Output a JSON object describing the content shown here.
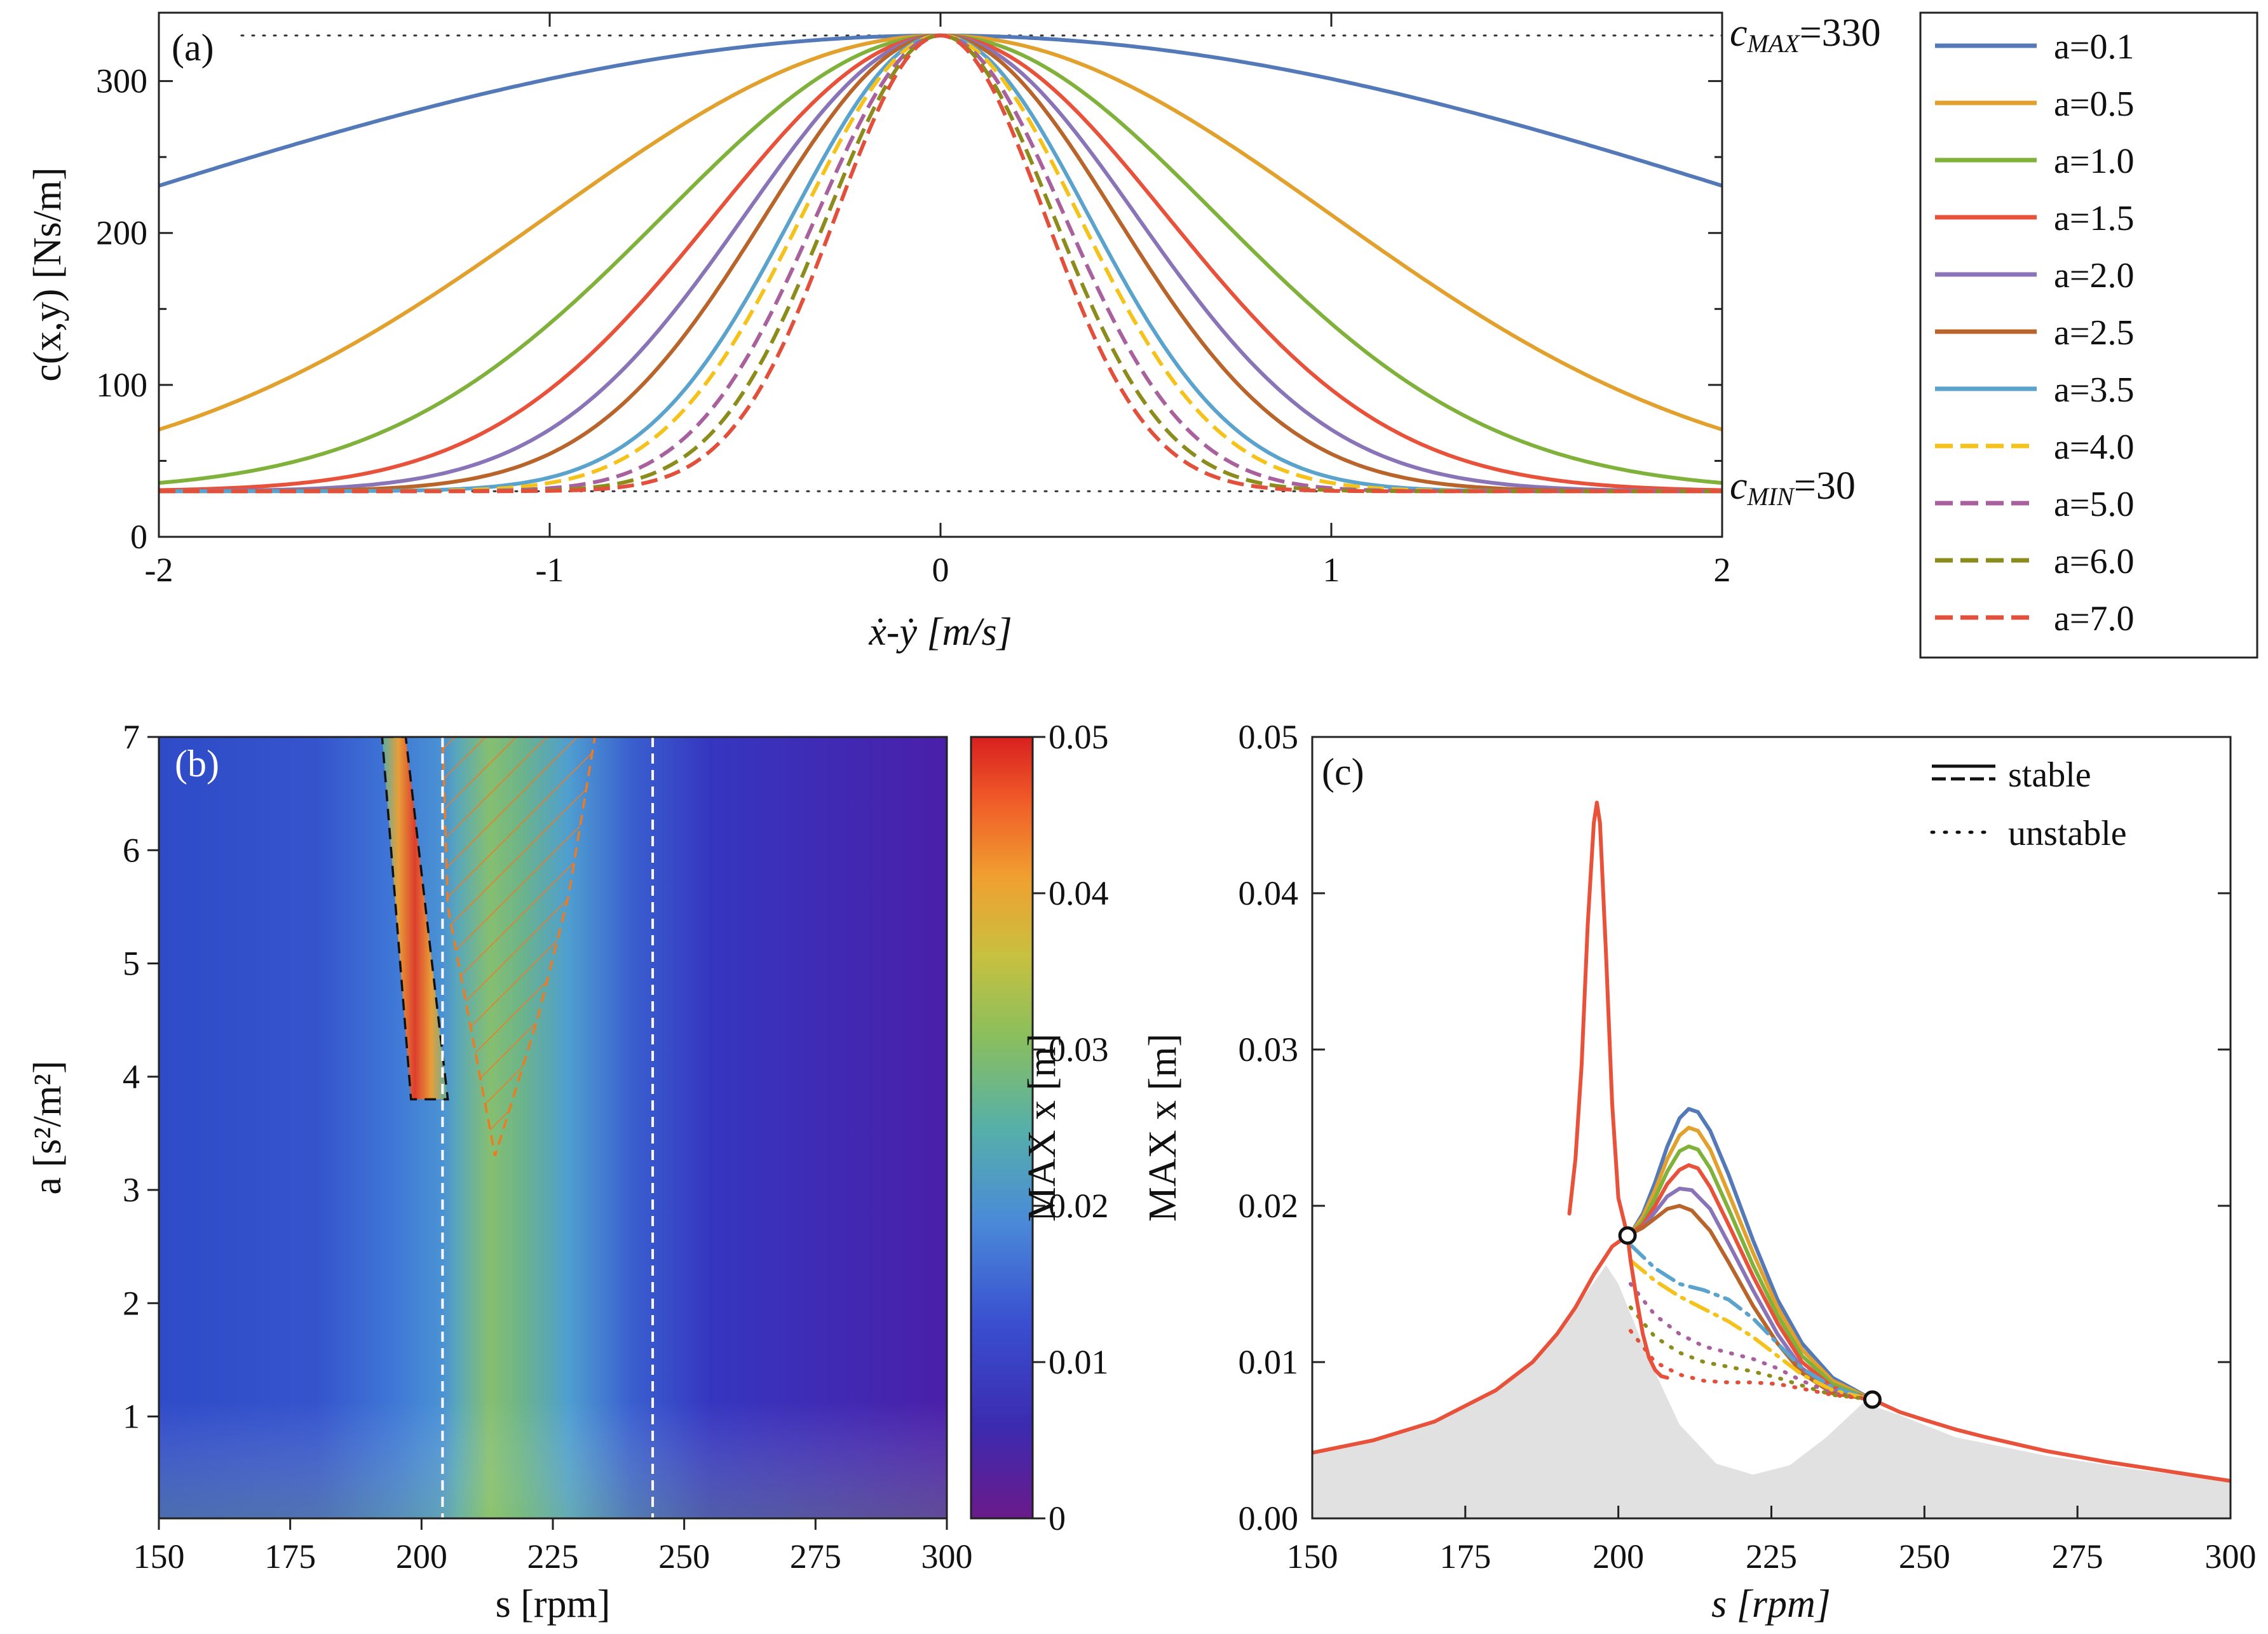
{
  "figure": {
    "background": "#ffffff"
  },
  "chart_data": [
    {
      "id": "a",
      "type": "line",
      "panel_label": "(a)",
      "title": "",
      "xlabel": "ẋ-ẏ [m/s]",
      "ylabel": "c(x,y) [Ns/m]",
      "xlim": [
        -2,
        2
      ],
      "ylim": [
        0,
        345
      ],
      "xticks": [
        -2,
        -1,
        0,
        1,
        2
      ],
      "xtick_labels": [
        "-2",
        "-1",
        "0",
        "1",
        "2"
      ],
      "yticks": [
        0,
        100,
        200,
        300
      ],
      "ytick_labels": [
        "0",
        "100",
        "200",
        "300"
      ],
      "model": "c = c_min + (c_max - c_min) * exp(-a * v^2)",
      "c_max": 330,
      "c_min": 30,
      "annotations": {
        "cmax_sym": "c",
        "cmax_sub": "MAX",
        "cmax_val": "=330",
        "cmin_sym": "c",
        "cmin_sub": "MIN",
        "cmin_val": "=30"
      },
      "legend_position": "right",
      "series": [
        {
          "name": "a=0.1",
          "a": 0.1,
          "color": "#5479b8",
          "dashed": false
        },
        {
          "name": "a=0.5",
          "a": 0.5,
          "color": "#e2a02c",
          "dashed": false
        },
        {
          "name": "a=1.0",
          "a": 1.0,
          "color": "#7fb13b",
          "dashed": false
        },
        {
          "name": "a=1.5",
          "a": 1.5,
          "color": "#e8513a",
          "dashed": false
        },
        {
          "name": "a=2.0",
          "a": 2.0,
          "color": "#8a74b8",
          "dashed": false
        },
        {
          "name": "a=2.5",
          "a": 2.5,
          "color": "#b8642a",
          "dashed": false
        },
        {
          "name": "a=3.5",
          "a": 3.5,
          "color": "#5aa3cc",
          "dashed": false
        },
        {
          "name": "a=4.0",
          "a": 4.0,
          "color": "#f5c21b",
          "dashed": true
        },
        {
          "name": "a=5.0",
          "a": 5.0,
          "color": "#a8619c",
          "dashed": true
        },
        {
          "name": "a=6.0",
          "a": 6.0,
          "color": "#8c8c1c",
          "dashed": true
        },
        {
          "name": "a=7.0",
          "a": 7.0,
          "color": "#e2503c",
          "dashed": true
        }
      ]
    },
    {
      "id": "b",
      "type": "heatmap",
      "panel_label": "(b)",
      "xlabel": "s [rpm]",
      "ylabel": "a [s²/m²]",
      "xlim": [
        150,
        300
      ],
      "ylim": [
        0.1,
        7
      ],
      "xticks": [
        150,
        175,
        200,
        225,
        250,
        275,
        300
      ],
      "xtick_labels": [
        "150",
        "175",
        "200",
        "225",
        "250",
        "275",
        "300"
      ],
      "yticks": [
        1,
        2,
        3,
        4,
        5,
        6,
        7
      ],
      "ytick_labels": [
        "1",
        "2",
        "3",
        "4",
        "5",
        "6",
        "7"
      ],
      "colorbar": {
        "label": "MAX x [m]",
        "range": [
          0,
          0.05
        ],
        "ticks": [
          0,
          0.01,
          0.02,
          0.03,
          0.04,
          0.05
        ],
        "tick_labels": [
          "0",
          "0.01",
          "0.02",
          "0.03",
          "0.04",
          "0.05"
        ]
      },
      "vertical_lines_s": [
        204,
        244
      ],
      "high_amplitude_region": [
        [
          192.5,
          7
        ],
        [
          197,
          7
        ],
        [
          205,
          3.8
        ],
        [
          198,
          3.8
        ]
      ],
      "hatched_region": [
        [
          204,
          7
        ],
        [
          233,
          7
        ],
        [
          228,
          5.6
        ],
        [
          222,
          4.5
        ],
        [
          214,
          3.3
        ],
        [
          205,
          5.5
        ]
      ],
      "value_profile": [
        {
          "s": 150,
          "value": 0.009
        },
        {
          "s": 175,
          "value": 0.011
        },
        {
          "s": 190,
          "value": 0.014
        },
        {
          "s": 200,
          "value": 0.016
        },
        {
          "s": 210,
          "value": 0.022
        },
        {
          "s": 225,
          "value": 0.015
        },
        {
          "s": 240,
          "value": 0.009
        },
        {
          "s": 260,
          "value": 0.006
        },
        {
          "s": 300,
          "value": 0.003
        }
      ]
    },
    {
      "id": "c",
      "type": "line",
      "panel_label": "(c)",
      "xlabel": "s [rpm]",
      "ylabel": "MAX x [m]",
      "xlim": [
        150,
        300
      ],
      "ylim": [
        0,
        0.05
      ],
      "xticks": [
        150,
        175,
        200,
        225,
        250,
        275,
        300
      ],
      "xtick_labels": [
        "150",
        "175",
        "200",
        "225",
        "250",
        "275",
        "300"
      ],
      "yticks": [
        0,
        0.01,
        0.02,
        0.03,
        0.04,
        0.05
      ],
      "ytick_labels": [
        "0.00",
        "0.01",
        "0.02",
        "0.03",
        "0.04",
        "0.05"
      ],
      "legend": [
        {
          "label": "stable",
          "style": "solid/dashed"
        },
        {
          "label": "unstable",
          "style": "dotted"
        }
      ],
      "legend_position": "top-right",
      "marked_points": [
        {
          "s": 201.5,
          "y": 0.0181
        },
        {
          "s": 241.5,
          "y": 0.0076
        }
      ],
      "shaded_area": [
        {
          "s": 150,
          "y": 0.0042
        },
        {
          "s": 160,
          "y": 0.005
        },
        {
          "s": 170,
          "y": 0.0062
        },
        {
          "s": 180,
          "y": 0.0082
        },
        {
          "s": 188,
          "y": 0.0108
        },
        {
          "s": 194,
          "y": 0.014
        },
        {
          "s": 198,
          "y": 0.0162
        },
        {
          "s": 200,
          "y": 0.015
        },
        {
          "s": 205,
          "y": 0.0102
        },
        {
          "s": 210,
          "y": 0.006
        },
        {
          "s": 216,
          "y": 0.0035
        },
        {
          "s": 222,
          "y": 0.0028
        },
        {
          "s": 228,
          "y": 0.0034
        },
        {
          "s": 234,
          "y": 0.0052
        },
        {
          "s": 240,
          "y": 0.0074
        },
        {
          "s": 246,
          "y": 0.0066
        },
        {
          "s": 255,
          "y": 0.0052
        },
        {
          "s": 270,
          "y": 0.004
        },
        {
          "s": 285,
          "y": 0.0031
        },
        {
          "s": 300,
          "y": 0.0024
        }
      ],
      "series": [
        {
          "a": 0.1,
          "color": "#5479b8",
          "style": "solid",
          "x": [
            202,
            204,
            206,
            208,
            210,
            211.5,
            213,
            215,
            218,
            222,
            226,
            230,
            235,
            241.5
          ],
          "y": [
            0.0182,
            0.0195,
            0.0215,
            0.0238,
            0.0256,
            0.0262,
            0.026,
            0.0248,
            0.022,
            0.0178,
            0.014,
            0.0112,
            0.009,
            0.0076
          ]
        },
        {
          "a": 0.5,
          "color": "#e2a02c",
          "style": "solid",
          "x": [
            202,
            204,
            206,
            208,
            210,
            211.5,
            213,
            215,
            218,
            222,
            226,
            230,
            235,
            241.5
          ],
          "y": [
            0.0182,
            0.0193,
            0.021,
            0.023,
            0.0245,
            0.025,
            0.0248,
            0.0236,
            0.0208,
            0.017,
            0.0135,
            0.0108,
            0.0088,
            0.0076
          ]
        },
        {
          "a": 1.0,
          "color": "#7fb13b",
          "style": "solid",
          "x": [
            202,
            204,
            206,
            208,
            210,
            211.5,
            213,
            215,
            218,
            222,
            226,
            230,
            235,
            241.5
          ],
          "y": [
            0.0182,
            0.019,
            0.0205,
            0.0222,
            0.0235,
            0.0238,
            0.0236,
            0.0224,
            0.0198,
            0.0162,
            0.013,
            0.0104,
            0.0086,
            0.0076
          ]
        },
        {
          "a": 1.5,
          "color": "#e8513a",
          "style": "solid",
          "x": [
            202,
            204,
            206,
            208,
            210,
            211.5,
            213,
            215,
            218,
            222,
            226,
            230,
            235,
            241.5
          ],
          "y": [
            0.0182,
            0.0188,
            0.02,
            0.0214,
            0.0223,
            0.0226,
            0.0224,
            0.0212,
            0.0188,
            0.0155,
            0.0125,
            0.01,
            0.0084,
            0.0076
          ]
        },
        {
          "a": 2.0,
          "color": "#8a74b8",
          "style": "solid",
          "x": [
            202,
            204,
            206,
            208,
            210,
            212,
            215,
            218,
            222,
            226,
            230,
            235,
            241.5
          ],
          "y": [
            0.0182,
            0.0186,
            0.0196,
            0.0206,
            0.0211,
            0.021,
            0.0198,
            0.0176,
            0.0146,
            0.0118,
            0.0096,
            0.0082,
            0.0076
          ]
        },
        {
          "a": 2.5,
          "color": "#b8642a",
          "style": "solid",
          "x": [
            202,
            204,
            206,
            208,
            210,
            212,
            215,
            218,
            222,
            226,
            230,
            235,
            241.5
          ],
          "y": [
            0.0182,
            0.0186,
            0.0192,
            0.0198,
            0.02,
            0.0197,
            0.0184,
            0.0164,
            0.0136,
            0.0112,
            0.0093,
            0.008,
            0.0076
          ]
        },
        {
          "a": 3.5,
          "color": "#5aa3cc",
          "style": "dash-dot",
          "x": [
            202,
            206,
            210,
            214,
            218,
            222,
            226,
            230,
            235,
            241.5
          ],
          "y": [
            0.0175,
            0.016,
            0.015,
            0.0146,
            0.014,
            0.0128,
            0.0112,
            0.0096,
            0.0084,
            0.0076
          ]
        },
        {
          "a": 4.0,
          "color": "#f5c21b",
          "style": "dash-dot",
          "x": [
            202,
            206,
            210,
            214,
            218,
            222,
            226,
            230,
            235,
            241.5
          ],
          "y": [
            0.0165,
            0.0152,
            0.0142,
            0.0134,
            0.0126,
            0.0116,
            0.0104,
            0.0092,
            0.0082,
            0.0076
          ]
        },
        {
          "a": 5.0,
          "color": "#a8619c",
          "style": "dotted",
          "x": [
            202,
            206,
            210,
            214,
            218,
            222,
            226,
            230,
            235,
            241.5
          ],
          "y": [
            0.015,
            0.013,
            0.0118,
            0.011,
            0.0106,
            0.0102,
            0.0096,
            0.0088,
            0.008,
            0.0076
          ]
        },
        {
          "a": 6.0,
          "color": "#8c8c1c",
          "style": "dotted",
          "x": [
            202,
            206,
            210,
            214,
            218,
            222,
            226,
            230,
            235,
            241.5
          ],
          "y": [
            0.0135,
            0.0116,
            0.0106,
            0.01,
            0.0097,
            0.0094,
            0.009,
            0.0085,
            0.0079,
            0.0076
          ]
        },
        {
          "a": 7.0,
          "color": "#e2503c",
          "style": "dotted",
          "x": [
            202,
            206,
            210,
            214,
            218,
            222,
            226,
            230,
            235,
            241.5
          ],
          "y": [
            0.012,
            0.01,
            0.0092,
            0.0088,
            0.0087,
            0.0087,
            0.0086,
            0.0083,
            0.0079,
            0.0076
          ]
        },
        {
          "a": "all",
          "color": "#e8513a",
          "style": "solid",
          "role": "common-branch-left",
          "x": [
            150,
            160,
            170,
            180,
            186,
            190,
            193,
            196,
            199,
            201.5
          ],
          "y": [
            0.0042,
            0.005,
            0.0062,
            0.0082,
            0.01,
            0.0118,
            0.0135,
            0.0156,
            0.0174,
            0.0181
          ]
        },
        {
          "a": "all",
          "color": "#e8513a",
          "style": "solid",
          "role": "common-branch-right",
          "x": [
            241.5,
            246,
            250,
            255,
            260,
            270,
            280,
            290,
            300
          ],
          "y": [
            0.0076,
            0.0068,
            0.0063,
            0.0057,
            0.0052,
            0.0043,
            0.0036,
            0.003,
            0.0024
          ]
        },
        {
          "a": "peak",
          "color": "#e8513a",
          "style": "solid",
          "role": "resonance-peak",
          "x": [
            192,
            193,
            194,
            195,
            196,
            196.5,
            197,
            198,
            199,
            200,
            201.5
          ],
          "y": [
            0.0195,
            0.023,
            0.029,
            0.038,
            0.0445,
            0.0458,
            0.0445,
            0.036,
            0.0265,
            0.0205,
            0.0181
          ]
        },
        {
          "a": "low",
          "color": "#e8513a",
          "style": "solid",
          "role": "lower-branch",
          "x": [
            201.5,
            202,
            203,
            204,
            205,
            206,
            207,
            208
          ],
          "y": [
            0.0181,
            0.0165,
            0.014,
            0.0118,
            0.0103,
            0.0095,
            0.0091,
            0.009
          ]
        }
      ]
    }
  ]
}
